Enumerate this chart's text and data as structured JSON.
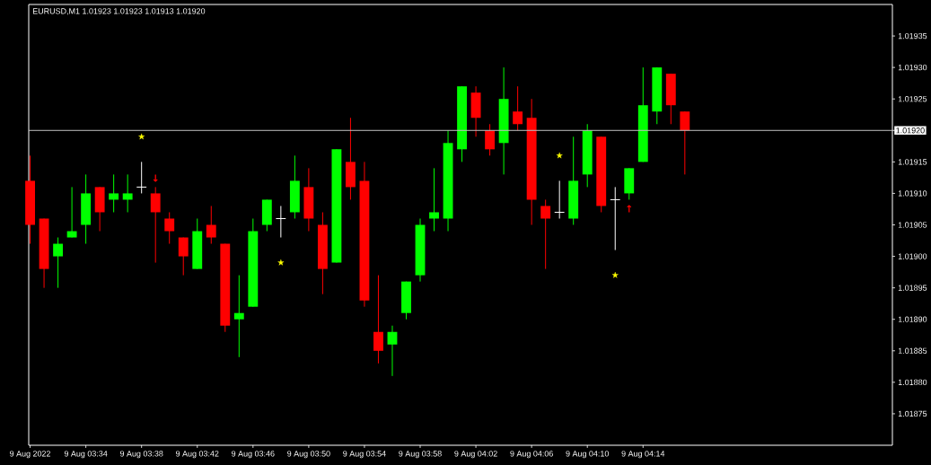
{
  "chart_data": {
    "type": "candlestick",
    "title": "EURUSD,M1 1.01923 1.01923 1.01913 1.01920",
    "x": [
      "2022-08-09T03:30",
      "2022-08-09T03:31",
      "2022-08-09T03:32",
      "2022-08-09T03:33",
      "2022-08-09T03:34",
      "2022-08-09T03:35",
      "2022-08-09T03:36",
      "2022-08-09T03:37",
      "2022-08-09T03:38",
      "2022-08-09T03:39",
      "2022-08-09T03:40",
      "2022-08-09T03:41",
      "2022-08-09T03:42",
      "2022-08-09T03:43",
      "2022-08-09T03:44",
      "2022-08-09T03:45",
      "2022-08-09T03:46",
      "2022-08-09T03:47",
      "2022-08-09T03:48",
      "2022-08-09T03:49",
      "2022-08-09T03:50",
      "2022-08-09T03:51",
      "2022-08-09T03:52",
      "2022-08-09T03:53",
      "2022-08-09T03:54",
      "2022-08-09T03:55",
      "2022-08-09T03:56",
      "2022-08-09T03:57",
      "2022-08-09T03:58",
      "2022-08-09T03:59",
      "2022-08-09T04:00",
      "2022-08-09T04:01",
      "2022-08-09T04:02",
      "2022-08-09T04:03",
      "2022-08-09T04:04",
      "2022-08-09T04:05",
      "2022-08-09T04:06",
      "2022-08-09T04:07",
      "2022-08-09T04:08",
      "2022-08-09T04:09",
      "2022-08-09T04:10",
      "2022-08-09T04:11",
      "2022-08-09T04:12",
      "2022-08-09T04:13",
      "2022-08-09T04:14",
      "2022-08-09T04:15",
      "2022-08-09T04:16",
      "2022-08-09T04:17"
    ],
    "ohlc": [
      [
        1.01912,
        1.01916,
        1.01902,
        1.01905
      ],
      [
        1.01906,
        1.01906,
        1.01895,
        1.01898
      ],
      [
        1.019,
        1.01903,
        1.01895,
        1.01902
      ],
      [
        1.01903,
        1.01911,
        1.01903,
        1.01904
      ],
      [
        1.01905,
        1.01913,
        1.01902,
        1.0191
      ],
      [
        1.01911,
        1.01911,
        1.01904,
        1.01907
      ],
      [
        1.01909,
        1.01913,
        1.01907,
        1.0191
      ],
      [
        1.01909,
        1.01913,
        1.01907,
        1.0191
      ],
      [
        1.01911,
        1.01915,
        1.0191,
        1.01911
      ],
      [
        1.0191,
        1.01911,
        1.01899,
        1.01907
      ],
      [
        1.01906,
        1.01907,
        1.01902,
        1.01904
      ],
      [
        1.01903,
        1.01903,
        1.01897,
        1.019
      ],
      [
        1.01898,
        1.01906,
        1.01898,
        1.01904
      ],
      [
        1.01905,
        1.01908,
        1.01902,
        1.01903
      ],
      [
        1.01902,
        1.01902,
        1.01888,
        1.01889
      ],
      [
        1.0189,
        1.01897,
        1.01884,
        1.01891
      ],
      [
        1.01892,
        1.01906,
        1.01892,
        1.01904
      ],
      [
        1.01905,
        1.01909,
        1.01904,
        1.01909
      ],
      [
        1.01906,
        1.01908,
        1.01903,
        1.01906
      ],
      [
        1.01907,
        1.01916,
        1.01906,
        1.01912
      ],
      [
        1.01911,
        1.01914,
        1.01904,
        1.01906
      ],
      [
        1.01905,
        1.01907,
        1.01894,
        1.01898
      ],
      [
        1.01899,
        1.01917,
        1.01899,
        1.01917
      ],
      [
        1.01915,
        1.01922,
        1.01909,
        1.01911
      ],
      [
        1.01912,
        1.01915,
        1.01892,
        1.01893
      ],
      [
        1.01888,
        1.01897,
        1.01883,
        1.01885
      ],
      [
        1.01886,
        1.01889,
        1.01881,
        1.01888
      ],
      [
        1.01891,
        1.01896,
        1.0189,
        1.01896
      ],
      [
        1.01897,
        1.01906,
        1.01896,
        1.01905
      ],
      [
        1.01906,
        1.01914,
        1.01904,
        1.01907
      ],
      [
        1.01906,
        1.0192,
        1.01904,
        1.01918
      ],
      [
        1.01917,
        1.01927,
        1.01915,
        1.01927
      ],
      [
        1.01926,
        1.01927,
        1.01919,
        1.01922
      ],
      [
        1.0192,
        1.01921,
        1.01916,
        1.01917
      ],
      [
        1.01918,
        1.0193,
        1.01913,
        1.01925
      ],
      [
        1.01923,
        1.01927,
        1.0192,
        1.01921
      ],
      [
        1.01922,
        1.01925,
        1.01905,
        1.01909
      ],
      [
        1.01908,
        1.01909,
        1.01898,
        1.01906
      ],
      [
        1.01907,
        1.01912,
        1.01906,
        1.01907
      ],
      [
        1.01906,
        1.01919,
        1.01905,
        1.01912
      ],
      [
        1.01913,
        1.01921,
        1.01911,
        1.0192
      ],
      [
        1.01919,
        1.01919,
        1.01907,
        1.01908
      ],
      [
        1.01909,
        1.01911,
        1.01901,
        1.01909
      ],
      [
        1.0191,
        1.01914,
        1.01909,
        1.01914
      ],
      [
        1.01915,
        1.0193,
        1.01915,
        1.01924
      ],
      [
        1.01923,
        1.0193,
        1.01921,
        1.0193
      ],
      [
        1.01929,
        1.01929,
        1.01921,
        1.01924
      ],
      [
        1.01923,
        1.01923,
        1.01913,
        1.0192
      ]
    ],
    "colors": [
      "#ff0000",
      "#ff0000",
      "#00ff00",
      "#00ff00",
      "#00ff00",
      "#ff0000",
      "#00ff00",
      "#00ff00",
      "#ffffff",
      "#ff0000",
      "#ff0000",
      "#ff0000",
      "#00ff00",
      "#ff0000",
      "#ff0000",
      "#00ff00",
      "#00ff00",
      "#00ff00",
      "#ffffff",
      "#00ff00",
      "#ff0000",
      "#ff0000",
      "#00ff00",
      "#ff0000",
      "#ff0000",
      "#ff0000",
      "#00ff00",
      "#00ff00",
      "#00ff00",
      "#00ff00",
      "#00ff00",
      "#00ff00",
      "#ff0000",
      "#ff0000",
      "#00ff00",
      "#ff0000",
      "#ff0000",
      "#ff0000",
      "#ffffff",
      "#00ff00",
      "#00ff00",
      "#ff0000",
      "#ffffff",
      "#00ff00",
      "#00ff00",
      "#00ff00",
      "#ff0000",
      "#ff0000"
    ],
    "series": [
      {
        "type": "scatter",
        "color": "#ffff00",
        "marker": "star",
        "x": [
          "2022-08-09T03:38",
          "2022-08-09T03:48",
          "2022-08-09T04:08",
          "2022-08-09T04:12"
        ],
        "values": [
          1.01919,
          1.01899,
          1.01916,
          1.01897
        ]
      }
    ],
    "annotations": [
      {
        "text": "↓",
        "x": "2022-08-09T03:39",
        "y": 1.01911
      },
      {
        "text": "↑",
        "x": "2022-08-09T04:13",
        "y": 1.01909
      }
    ],
    "ref_lines": [
      {
        "axis": "y",
        "value": 1.0192,
        "label": "1.01920",
        "color": "#c0c0c0"
      }
    ],
    "xlim": [
      "2022-08-09T03:29:54",
      "2022-08-09T04:31:54"
    ],
    "ylim": [
      1.0187,
      1.0194
    ],
    "xticks": [
      {
        "value": "2022-08-09T03:30",
        "label": "9 Aug 2022"
      },
      {
        "value": "2022-08-09T03:34",
        "label": "9 Aug 03:34"
      },
      {
        "value": "2022-08-09T03:38",
        "label": "9 Aug 03:38"
      },
      {
        "value": "2022-08-09T03:42",
        "label": "9 Aug 03:42"
      },
      {
        "value": "2022-08-09T03:46",
        "label": "9 Aug 03:46"
      },
      {
        "value": "2022-08-09T03:50",
        "label": "9 Aug 03:50"
      },
      {
        "value": "2022-08-09T03:54",
        "label": "9 Aug 03:54"
      },
      {
        "value": "2022-08-09T03:58",
        "label": "9 Aug 03:58"
      },
      {
        "value": "2022-08-09T04:02",
        "label": "9 Aug 04:02"
      },
      {
        "value": "2022-08-09T04:06",
        "label": "9 Aug 04:06"
      },
      {
        "value": "2022-08-09T04:10",
        "label": "9 Aug 04:10"
      },
      {
        "value": "2022-08-09T04:14",
        "label": "9 Aug 04:14"
      }
    ],
    "yticks": [
      {
        "value": 1.01875,
        "label": "1.01875"
      },
      {
        "value": 1.0188,
        "label": "1.01880"
      },
      {
        "value": 1.01885,
        "label": "1.01885"
      },
      {
        "value": 1.0189,
        "label": "1.01890"
      },
      {
        "value": 1.01895,
        "label": "1.01895"
      },
      {
        "value": 1.019,
        "label": "1.01900"
      },
      {
        "value": 1.01905,
        "label": "1.01905"
      },
      {
        "value": 1.0191,
        "label": "1.01910"
      },
      {
        "value": 1.01915,
        "label": "1.01915"
      },
      {
        "value": 1.0192,
        "label": null
      },
      {
        "value": 1.01925,
        "label": "1.01925"
      },
      {
        "value": 1.0193,
        "label": "1.01930"
      },
      {
        "value": 1.01935,
        "label": "1.01935"
      }
    ]
  }
}
